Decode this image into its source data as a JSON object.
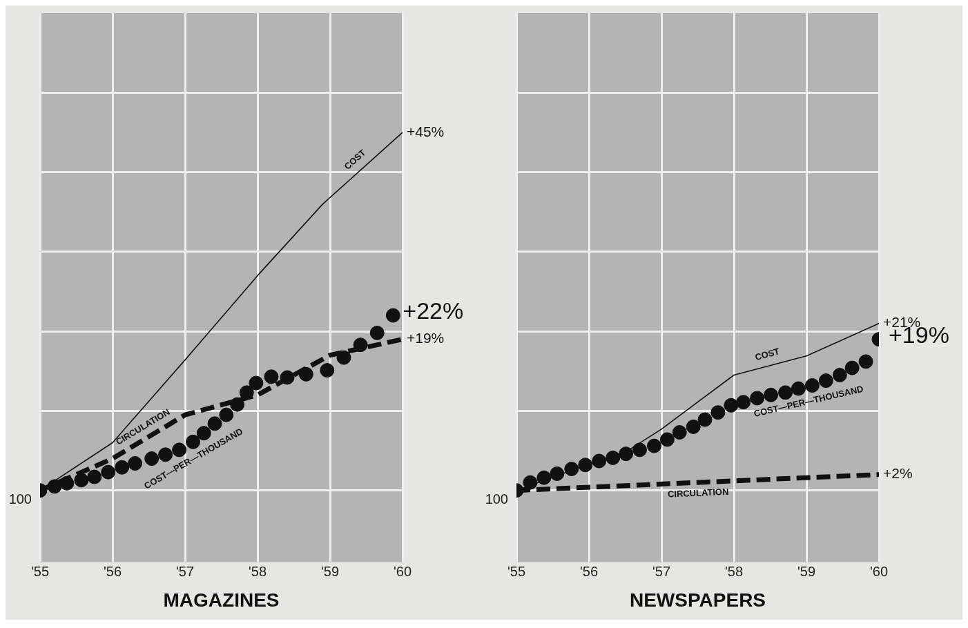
{
  "chart_data": [
    {
      "type": "line",
      "title": "MAGAZINES",
      "xlim": [
        1955,
        1960
      ],
      "xticks": [
        {
          "value": 1955,
          "label": "'55"
        },
        {
          "value": 1956,
          "label": "'56"
        },
        {
          "value": 1957,
          "label": "'57"
        },
        {
          "value": 1958,
          "label": "'58"
        },
        {
          "value": 1959,
          "label": "'59"
        },
        {
          "value": 1960,
          "label": "'60"
        }
      ],
      "ylim": [
        -9,
        60
      ],
      "yticks": [
        {
          "value": 0,
          "label": null
        },
        {
          "value": 10,
          "label": null
        },
        {
          "value": 20,
          "label": null
        },
        {
          "value": 30,
          "label": null
        },
        {
          "value": 40,
          "label": null
        },
        {
          "value": 50,
          "label": null
        }
      ],
      "tick_labels": "x",
      "grid": true,
      "annotations": [
        "100"
      ],
      "series": [
        {
          "name": "COST",
          "type": "line",
          "color": "#111111",
          "line_style": "solid",
          "x": [
            1955,
            1956,
            1957,
            1958,
            1958.9,
            1960
          ],
          "values": [
            0,
            6,
            16.4,
            27,
            36,
            45
          ],
          "value_labels": [
            null,
            null,
            null,
            null,
            null,
            "+45%"
          ]
        },
        {
          "name": "CIRCULATION",
          "type": "line",
          "color": "#111111",
          "line_style": "dashed",
          "x": [
            1955,
            1956,
            1957,
            1958,
            1959,
            1960
          ],
          "values": [
            0,
            4,
            9.5,
            12,
            17,
            19
          ],
          "value_labels": [
            null,
            null,
            null,
            null,
            null,
            "+19%"
          ]
        },
        {
          "name": "COST—PER—THOUSAND",
          "type": "scatter",
          "marker": "circle",
          "color": "#111111",
          "x": [
            1955,
            1955.2,
            1955.37,
            1955.57,
            1955.75,
            1955.94,
            1956.13,
            1956.31,
            1956.54,
            1956.73,
            1956.92,
            1957.11,
            1957.26,
            1957.41,
            1957.57,
            1957.72,
            1957.85,
            1957.98,
            1958.19,
            1958.41,
            1958.67,
            1958.96,
            1959.19,
            1959.42,
            1959.65,
            1959.87
          ],
          "values": [
            0,
            0.5,
            0.9,
            1.3,
            1.7,
            2.3,
            2.9,
            3.4,
            4,
            4.5,
            5.1,
            6.1,
            7.2,
            8.4,
            9.5,
            10.8,
            12.3,
            13.5,
            14.3,
            14.2,
            14.6,
            15.1,
            16.7,
            18.3,
            19.8,
            22
          ],
          "value_labels": [
            null,
            null,
            null,
            null,
            null,
            null,
            null,
            null,
            null,
            null,
            null,
            null,
            null,
            null,
            null,
            null,
            null,
            null,
            null,
            null,
            null,
            null,
            null,
            null,
            null,
            "+22%"
          ]
        }
      ]
    },
    {
      "type": "line",
      "title": "NEWSPAPERS",
      "xlim": [
        1955,
        1960
      ],
      "xticks": [
        {
          "value": 1955,
          "label": "'55"
        },
        {
          "value": 1956,
          "label": "'56"
        },
        {
          "value": 1957,
          "label": "'57"
        },
        {
          "value": 1958,
          "label": "'58"
        },
        {
          "value": 1959,
          "label": "'59"
        },
        {
          "value": 1960,
          "label": "'60"
        }
      ],
      "ylim": [
        -9,
        60
      ],
      "yticks": [
        {
          "value": 0,
          "label": null
        },
        {
          "value": 10,
          "label": null
        },
        {
          "value": 20,
          "label": null
        },
        {
          "value": 30,
          "label": null
        },
        {
          "value": 40,
          "label": null
        },
        {
          "value": 50,
          "label": null
        }
      ],
      "tick_labels": "x",
      "grid": true,
      "annotations": [
        "100"
      ],
      "series": [
        {
          "name": "COST",
          "type": "line",
          "color": "#111111",
          "line_style": "solid",
          "x": [
            1955,
            1956,
            1956.5,
            1957,
            1958,
            1959,
            1960
          ],
          "values": [
            0,
            3.3,
            4.8,
            7.7,
            14.5,
            16.9,
            21
          ],
          "value_labels": [
            null,
            null,
            null,
            null,
            null,
            null,
            "+21%"
          ]
        },
        {
          "name": "CIRCULATION",
          "type": "line",
          "color": "#111111",
          "line_style": "dashed",
          "x": [
            1955,
            1960
          ],
          "values": [
            0,
            2
          ],
          "value_labels": [
            null,
            "+2%"
          ]
        },
        {
          "name": "COST—PER—THOUSAND",
          "type": "scatter",
          "marker": "circle",
          "color": "#111111",
          "x": [
            1955,
            1955.19,
            1955.38,
            1955.56,
            1955.76,
            1955.95,
            1956.14,
            1956.33,
            1956.51,
            1956.7,
            1956.9,
            1957.08,
            1957.25,
            1957.44,
            1957.6,
            1957.78,
            1957.96,
            1958.13,
            1958.32,
            1958.51,
            1958.71,
            1958.89,
            1959.08,
            1959.27,
            1959.46,
            1959.63,
            1959.82,
            1960
          ],
          "values": [
            0,
            1,
            1.6,
            2.1,
            2.7,
            3.2,
            3.7,
            4.1,
            4.6,
            5.1,
            5.6,
            6.4,
            7.3,
            8,
            8.9,
            9.8,
            10.7,
            11.1,
            11.6,
            12,
            12.3,
            12.8,
            13.2,
            13.8,
            14.5,
            15.4,
            16.2,
            19
          ],
          "value_labels": [
            null,
            null,
            null,
            null,
            null,
            null,
            null,
            null,
            null,
            null,
            null,
            null,
            null,
            null,
            null,
            null,
            null,
            null,
            null,
            null,
            null,
            null,
            null,
            null,
            null,
            null,
            null,
            "+19%"
          ]
        }
      ]
    }
  ]
}
